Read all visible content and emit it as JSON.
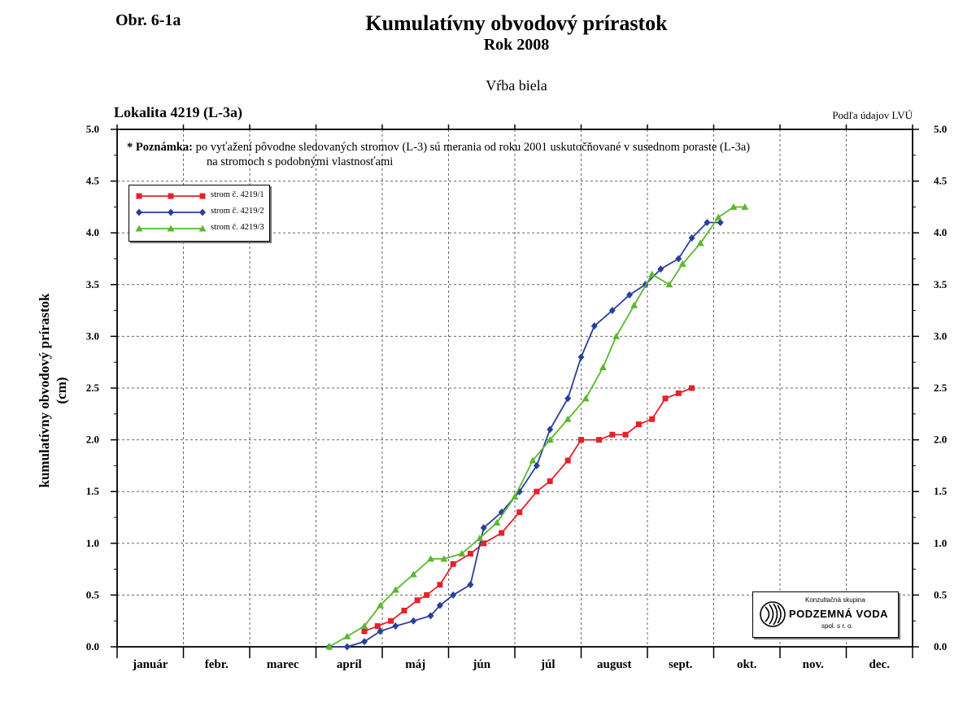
{
  "header": {
    "figure_label": "Obr. 6-1a",
    "title": "Kumulatívny obvodový prírastok",
    "subtitle": "Rok 2008",
    "species": "Vŕba biela",
    "locality": "Lokalita 4219 (L-3a)",
    "source": "Podľa údajov LVÚ"
  },
  "note": {
    "label": "* Poznámka:",
    "line1": "po vyťažení pôvodne sledovaných stromov (L-3) sú merania od roku 2001 uskutočňované v susednom poraste (L-3a)",
    "line2": "na stromoch s podobnými vlastnosťami"
  },
  "logo": {
    "top": "Konzultačná skupina",
    "main": "PODZEMNÁ VODA",
    "sub": "spol. s r. o."
  },
  "chart_data": {
    "type": "line",
    "title": "Kumulatívny obvodový prírastok",
    "ylabel": "kumulatívny obvodový prírastok\n(cm)",
    "xlabel": "",
    "ylim": [
      0,
      5
    ],
    "xlim_months": [
      0,
      12
    ],
    "y_ticks": [
      "0.0",
      "0.5",
      "1.0",
      "1.5",
      "2.0",
      "2.5",
      "3.0",
      "3.5",
      "4.0",
      "4.5",
      "5.0"
    ],
    "categories": [
      "január",
      "febr.",
      "marec",
      "apríl",
      "máj",
      "jún",
      "júl",
      "august",
      "sept.",
      "okt.",
      "nov.",
      "dec."
    ],
    "grid": true,
    "legend_position": "top-left",
    "x_unit": "month (fractional, 0 = start of január)",
    "series": [
      {
        "name": "strom č. 4219/1",
        "color": "#e8202a",
        "marker": "square",
        "x": [
          3.73,
          3.93,
          4.13,
          4.33,
          4.53,
          4.67,
          4.87,
          5.07,
          5.33,
          5.53,
          5.8,
          6.07,
          6.33,
          6.53,
          6.8,
          7.0,
          7.27,
          7.47,
          7.67,
          7.87,
          8.07,
          8.27,
          8.47,
          8.67,
          8.9,
          9.1
        ],
        "values": [
          0.15,
          0.2,
          0.25,
          0.35,
          0.45,
          0.5,
          0.6,
          0.8,
          0.9,
          1.0,
          1.1,
          1.3,
          1.5,
          1.6,
          1.8,
          2.0,
          2.0,
          2.05,
          2.05,
          2.15,
          2.2,
          2.4,
          2.45,
          2.5,
          null,
          null
        ]
      },
      {
        "name": "strom č. 4219/2",
        "color": "#2a3f9d",
        "marker": "diamond",
        "x": [
          3.2,
          3.47,
          3.73,
          3.97,
          4.2,
          4.47,
          4.73,
          4.87,
          5.07,
          5.33,
          5.53,
          5.8,
          6.07,
          6.33,
          6.53,
          6.8,
          7.0,
          7.2,
          7.47,
          7.73,
          7.97,
          8.2,
          8.47,
          8.67,
          8.9,
          9.1
        ],
        "values": [
          0.0,
          0.0,
          0.05,
          0.15,
          0.2,
          0.25,
          0.3,
          0.4,
          0.5,
          0.6,
          1.15,
          1.3,
          1.5,
          1.75,
          2.1,
          2.4,
          2.8,
          3.1,
          3.25,
          3.4,
          3.5,
          3.65,
          3.75,
          3.95,
          4.1,
          4.1
        ]
      },
      {
        "name": "strom č. 4219/3",
        "color": "#5ab82e",
        "marker": "triangle",
        "x": [
          3.2,
          3.47,
          3.73,
          3.97,
          4.2,
          4.47,
          4.73,
          4.93,
          5.2,
          5.47,
          5.73,
          6.0,
          6.27,
          6.53,
          6.8,
          7.07,
          7.33,
          7.53,
          7.8,
          8.07,
          8.33,
          8.53,
          8.8,
          9.07,
          9.3,
          9.47
        ],
        "values": [
          0.0,
          0.1,
          0.2,
          0.4,
          0.55,
          0.7,
          0.85,
          0.85,
          0.9,
          1.05,
          1.2,
          1.45,
          1.8,
          2.0,
          2.2,
          2.4,
          2.7,
          3.0,
          3.3,
          3.6,
          3.5,
          3.7,
          3.9,
          4.15,
          4.25,
          4.25
        ]
      }
    ]
  }
}
